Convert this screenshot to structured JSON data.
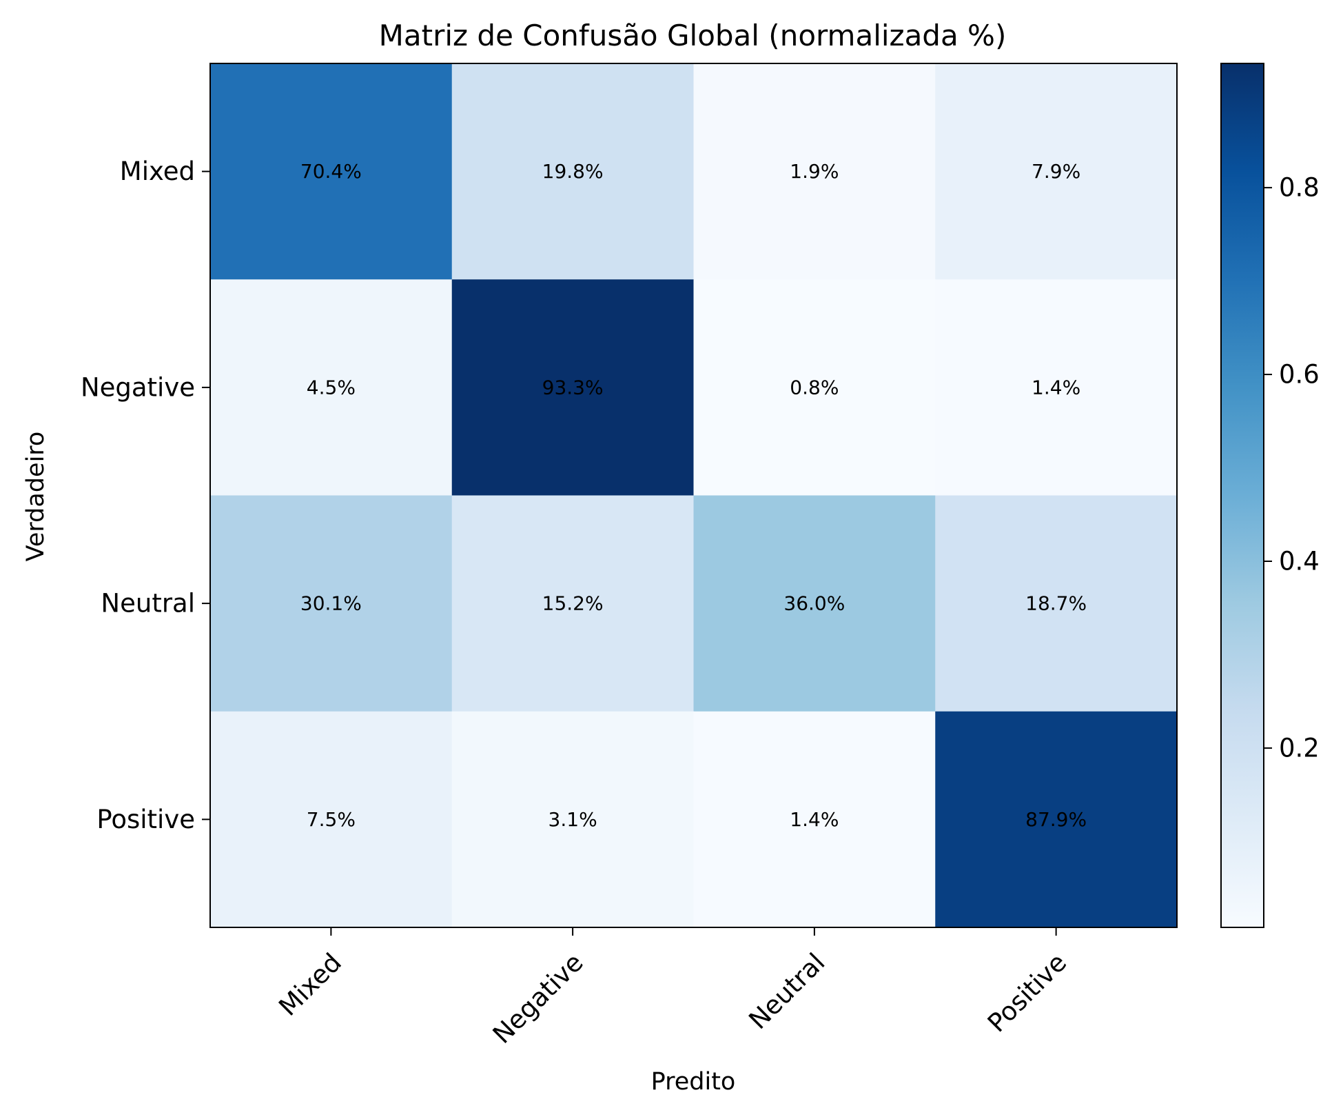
{
  "chart_data": {
    "type": "heatmap",
    "title": "Matriz de Confusão Global (normalizada %)",
    "xlabel": "Predito",
    "ylabel": "Verdadeiro",
    "x_categories": [
      "Mixed",
      "Negative",
      "Neutral",
      "Positive"
    ],
    "y_categories": [
      "Mixed",
      "Negative",
      "Neutral",
      "Positive"
    ],
    "values": [
      [
        0.704,
        0.198,
        0.019,
        0.079
      ],
      [
        0.045,
        0.933,
        0.008,
        0.014
      ],
      [
        0.301,
        0.152,
        0.36,
        0.187
      ],
      [
        0.075,
        0.031,
        0.014,
        0.879
      ]
    ],
    "cell_labels": [
      [
        "70.4%",
        "19.8%",
        "1.9%",
        "7.9%"
      ],
      [
        "4.5%",
        "93.3%",
        "0.8%",
        "1.4%"
      ],
      [
        "30.1%",
        "15.2%",
        "36.0%",
        "18.7%"
      ],
      [
        "7.5%",
        "3.1%",
        "1.4%",
        "87.9%"
      ]
    ],
    "colormap": "Blues",
    "colorbar": {
      "range": [
        0.008,
        0.933
      ],
      "ticks": [
        0.2,
        0.4,
        0.6,
        0.8
      ],
      "tick_labels": [
        "0.2",
        "0.4",
        "0.6",
        "0.8"
      ]
    },
    "grid": false,
    "legend": "none",
    "colors": {
      "cell_text": "#000000",
      "axes": "#000000",
      "background": "#ffffff"
    }
  }
}
